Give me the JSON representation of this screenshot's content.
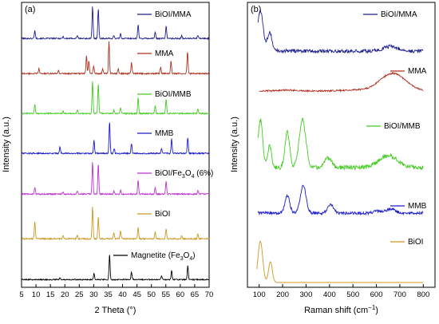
{
  "chart_data": [
    {
      "type": "line",
      "panel_label": "(a)",
      "xlabel": "2 Theta (°)",
      "ylabel": "Intensity (a.u.)",
      "xlim": [
        5,
        70
      ],
      "xticks": [
        5,
        10,
        15,
        20,
        25,
        30,
        35,
        40,
        45,
        50,
        55,
        60,
        65,
        70
      ],
      "grid": false,
      "legend_placement": "right of each trace",
      "series": [
        {
          "name": "BiOI/MMA",
          "color": "#1f1f8f",
          "peaks": [
            [
              9.6,
              0.25
            ],
            [
              19.4,
              0.06
            ],
            [
              24.3,
              0.1
            ],
            [
              29.6,
              1.0
            ],
            [
              31.6,
              0.95
            ],
            [
              37.0,
              0.1
            ],
            [
              39.3,
              0.15
            ],
            [
              45.4,
              0.45
            ],
            [
              51.3,
              0.2
            ],
            [
              55.1,
              0.4
            ],
            [
              60.5,
              0.1
            ],
            [
              66.1,
              0.1
            ]
          ]
        },
        {
          "name": "MMA",
          "color": "#b03020",
          "peaks": [
            [
              11.0,
              0.15
            ],
            [
              17.8,
              0.1
            ],
            [
              27.5,
              0.55
            ],
            [
              28.3,
              0.4
            ],
            [
              30.0,
              0.25
            ],
            [
              33.1,
              0.15
            ],
            [
              35.3,
              1.0
            ],
            [
              38.5,
              0.15
            ],
            [
              43.1,
              0.35
            ],
            [
              53.2,
              0.2
            ],
            [
              56.8,
              0.4
            ],
            [
              62.5,
              0.7
            ]
          ]
        },
        {
          "name": "BiOI/MMB",
          "color": "#44cc22",
          "peaks": [
            [
              9.6,
              0.3
            ],
            [
              19.4,
              0.08
            ],
            [
              24.3,
              0.12
            ],
            [
              29.6,
              1.0
            ],
            [
              31.6,
              0.95
            ],
            [
              37.0,
              0.12
            ],
            [
              39.3,
              0.18
            ],
            [
              45.4,
              0.5
            ],
            [
              51.3,
              0.25
            ],
            [
              55.1,
              0.45
            ],
            [
              66.1,
              0.15
            ]
          ]
        },
        {
          "name": "MMB",
          "color": "#1a1acc",
          "peaks": [
            [
              18.3,
              0.2
            ],
            [
              30.1,
              0.4
            ],
            [
              35.5,
              1.0
            ],
            [
              37.1,
              0.15
            ],
            [
              43.1,
              0.3
            ],
            [
              53.5,
              0.15
            ],
            [
              57.0,
              0.45
            ],
            [
              62.6,
              0.5
            ]
          ]
        },
        {
          "name": "BiOI/Fe",
          "name_sub": "3",
          "name_mid": "O",
          "name_sub2": "4",
          "name_tail": " (6%)",
          "color": "#bb33cc",
          "peaks": [
            [
              9.6,
              0.2
            ],
            [
              19.4,
              0.06
            ],
            [
              24.3,
              0.1
            ],
            [
              29.6,
              1.0
            ],
            [
              31.6,
              0.95
            ],
            [
              37.0,
              0.1
            ],
            [
              39.3,
              0.12
            ],
            [
              45.4,
              0.45
            ],
            [
              51.3,
              0.2
            ],
            [
              55.1,
              0.4
            ],
            [
              66.1,
              0.1
            ]
          ]
        },
        {
          "name": "BiOI",
          "color": "#cc9922",
          "peaks": [
            [
              9.6,
              0.55
            ],
            [
              19.4,
              0.1
            ],
            [
              24.3,
              0.1
            ],
            [
              29.6,
              1.0
            ],
            [
              31.6,
              0.7
            ],
            [
              37.0,
              0.2
            ],
            [
              39.3,
              0.25
            ],
            [
              45.4,
              0.35
            ],
            [
              51.3,
              0.2
            ],
            [
              55.1,
              0.3
            ],
            [
              60.5,
              0.1
            ],
            [
              66.1,
              0.15
            ]
          ]
        },
        {
          "name": "Magnetite (Fe",
          "name_sub": "3",
          "name_mid": "O",
          "name_sub2": "4",
          "name_tail": ")",
          "color": "#000000",
          "peaks": [
            [
              18.3,
              0.08
            ],
            [
              30.1,
              0.25
            ],
            [
              35.5,
              1.0
            ],
            [
              43.1,
              0.3
            ],
            [
              53.5,
              0.15
            ],
            [
              57.0,
              0.35
            ],
            [
              62.6,
              0.55
            ]
          ]
        }
      ]
    },
    {
      "type": "line",
      "panel_label": "(b)",
      "xlabel": "Raman shift (cm",
      "xlabel_sup": "−1",
      "xlabel_tail": ")",
      "ylabel": "Intensity (a.u.)",
      "xlim": [
        50,
        850
      ],
      "xticks": [
        100,
        200,
        300,
        400,
        500,
        600,
        700,
        800
      ],
      "grid": false,
      "legend_placement": "right of each trace",
      "series": [
        {
          "name": "BiOI/MMA",
          "color": "#1f1f8f",
          "peaks": [
            [
              105,
              1.0,
              12
            ],
            [
              145,
              0.45,
              10
            ],
            [
              660,
              0.12,
              30
            ]
          ]
        },
        {
          "name": "MMA",
          "color": "#b03020",
          "peaks": [
            [
              670,
              1.0,
              55
            ],
            [
              220,
              0.05,
              40
            ],
            [
              500,
              0.05,
              50
            ]
          ]
        },
        {
          "name": "BiOI/MMB",
          "color": "#44cc22",
          "peaks": [
            [
              105,
              1.0,
              10
            ],
            [
              145,
              0.45,
              8
            ],
            [
              220,
              0.75,
              10
            ],
            [
              285,
              1.0,
              14
            ],
            [
              395,
              0.2,
              15
            ],
            [
              650,
              0.25,
              40
            ]
          ]
        },
        {
          "name": "MMB",
          "color": "#1a1acc",
          "peaks": [
            [
              220,
              0.55,
              10
            ],
            [
              288,
              0.85,
              12
            ],
            [
              405,
              0.25,
              12
            ],
            [
              605,
              0.06,
              15
            ],
            [
              660,
              0.12,
              20
            ]
          ]
        },
        {
          "name": "BiOI",
          "color": "#cc9922",
          "peaks": [
            [
              105,
              1.0,
              10
            ],
            [
              148,
              0.5,
              8
            ]
          ]
        }
      ]
    }
  ]
}
